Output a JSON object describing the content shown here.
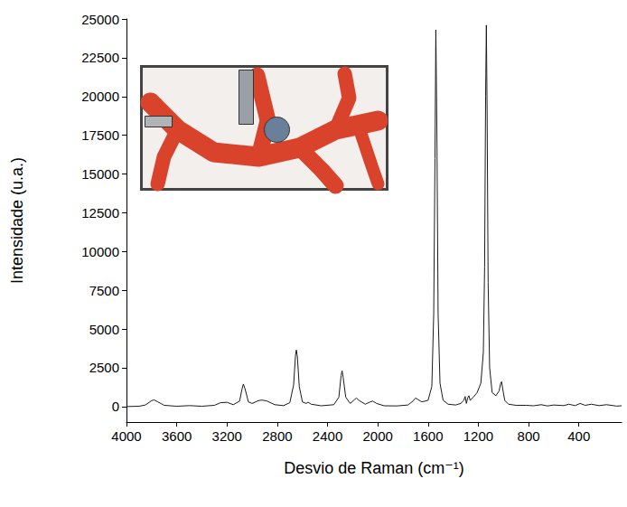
{
  "chart_data": {
    "type": "line",
    "x_label": "Desvio de Raman (cm⁻¹)",
    "y_label": "Intensidade (u.a.)",
    "color": "#1a1a1a",
    "grid": false,
    "xlim": [
      4000,
      60
    ],
    "ylim": [
      -1000,
      25000
    ],
    "xticks": [
      4000,
      3600,
      3200,
      2800,
      2400,
      2000,
      1600,
      1200,
      800,
      400
    ],
    "yticks": [
      0,
      2500,
      5000,
      7500,
      10000,
      12500,
      15000,
      17500,
      20000,
      22500,
      25000
    ],
    "x": [
      4000,
      3900,
      3850,
      3800,
      3780,
      3750,
      3700,
      3600,
      3500,
      3400,
      3300,
      3250,
      3200,
      3150,
      3100,
      3080,
      3070,
      3055,
      3030,
      3000,
      2950,
      2920,
      2880,
      2820,
      2750,
      2700,
      2670,
      2655,
      2648,
      2640,
      2625,
      2600,
      2570,
      2555,
      2530,
      2450,
      2350,
      2310,
      2292,
      2284,
      2276,
      2255,
      2220,
      2185,
      2170,
      2150,
      2100,
      2060,
      2040,
      2010,
      1950,
      1850,
      1760,
      1720,
      1700,
      1680,
      1650,
      1600,
      1570,
      1555,
      1545,
      1538,
      1530,
      1520,
      1505,
      1480,
      1440,
      1380,
      1340,
      1315,
      1305,
      1295,
      1285,
      1275,
      1265,
      1240,
      1210,
      1180,
      1160,
      1150,
      1142,
      1136,
      1130,
      1122,
      1110,
      1090,
      1060,
      1035,
      1022,
      1015,
      1005,
      990,
      960,
      900,
      820,
      760,
      700,
      650,
      600,
      520,
      480,
      430,
      390,
      350,
      300,
      240,
      180,
      100,
      60
    ],
    "values": [
      0,
      20,
      100,
      380,
      430,
      300,
      80,
      20,
      60,
      20,
      80,
      250,
      270,
      120,
      350,
      1150,
      1450,
      1100,
      300,
      200,
      380,
      420,
      350,
      120,
      60,
      250,
      1400,
      3300,
      3650,
      3200,
      1300,
      300,
      200,
      280,
      150,
      50,
      120,
      600,
      2000,
      2300,
      1900,
      600,
      200,
      450,
      550,
      400,
      150,
      300,
      350,
      200,
      50,
      40,
      100,
      350,
      550,
      450,
      300,
      400,
      1300,
      6000,
      16000,
      24300,
      18000,
      6000,
      1500,
      400,
      150,
      100,
      200,
      400,
      650,
      200,
      550,
      700,
      400,
      600,
      900,
      1500,
      3500,
      9000,
      20000,
      24600,
      19000,
      8000,
      2500,
      900,
      700,
      1000,
      1500,
      1600,
      1100,
      400,
      150,
      80,
      80,
      50,
      120,
      40,
      100,
      60,
      150,
      60,
      200,
      80,
      150,
      60,
      120,
      30,
      50
    ]
  }
}
